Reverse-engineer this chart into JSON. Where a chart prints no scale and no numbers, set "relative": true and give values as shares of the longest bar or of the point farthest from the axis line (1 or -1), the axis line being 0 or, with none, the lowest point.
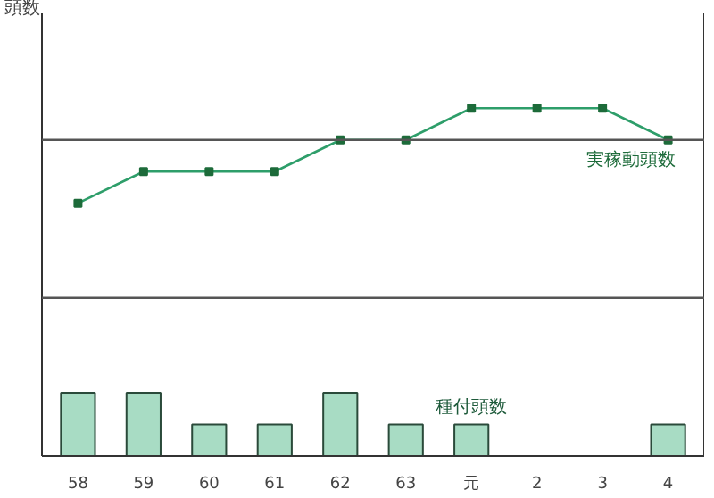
{
  "chart_data": {
    "type": "line",
    "relative": true,
    "annotations": [
      "頭数"
    ],
    "categories": [
      "58",
      "59",
      "60",
      "61",
      "62",
      "63",
      "元",
      "2",
      "3",
      "4"
    ],
    "series": [
      {
        "name": "実稼動頭数",
        "color": "#2e9e6a",
        "values": [
          0.727,
          0.818,
          0.818,
          0.818,
          0.909,
          0.909,
          1,
          1,
          1,
          0.909
        ]
      },
      {
        "name": "種付頭数",
        "type": "bar",
        "color": "#a8dcc4",
        "values": [
          0.182,
          0.182,
          0.091,
          0.091,
          0.182,
          0.091,
          0.091,
          null,
          null,
          0.091
        ]
      }
    ],
    "ref_lines": [
      {
        "axis": "y",
        "value": 0.909,
        "color": "#555555"
      },
      {
        "axis": "y",
        "value": 0.455,
        "color": "#555555"
      }
    ],
    "marker": "square",
    "legend": false,
    "grid": false
  }
}
